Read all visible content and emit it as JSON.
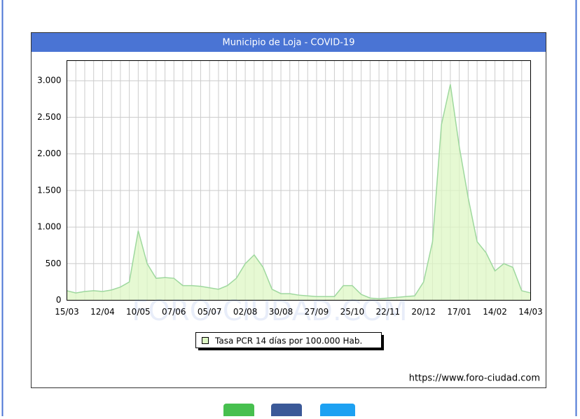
{
  "chart_data": {
    "type": "area",
    "title": "Municipio de Loja - COVID-19",
    "categories": [
      "15/03",
      null,
      null,
      null,
      "12/04",
      null,
      null,
      null,
      "10/05",
      null,
      null,
      null,
      "07/06",
      null,
      null,
      null,
      "05/07",
      null,
      null,
      null,
      "02/08",
      null,
      null,
      null,
      "30/08",
      null,
      null,
      null,
      "27/09",
      null,
      null,
      null,
      "25/10",
      null,
      null,
      null,
      "22/11",
      null,
      null,
      null,
      "20/12",
      null,
      null,
      null,
      "17/01",
      null,
      null,
      null,
      "14/02",
      null,
      null,
      null,
      "14/03"
    ],
    "series": [
      {
        "name": "Tasa PCR 14 días por 100.000 Hab.",
        "color": "#9ed89e",
        "values": [
          130,
          100,
          120,
          130,
          120,
          140,
          180,
          250,
          950,
          500,
          300,
          310,
          300,
          200,
          200,
          190,
          170,
          150,
          200,
          300,
          500,
          620,
          450,
          150,
          90,
          90,
          70,
          60,
          50,
          50,
          50,
          200,
          200,
          80,
          30,
          20,
          30,
          40,
          50,
          60,
          250,
          800,
          2400,
          2950,
          2100,
          1400,
          800,
          650,
          400,
          500,
          450,
          130,
          100
        ]
      }
    ],
    "ylim": [
      0,
      3275
    ],
    "yticks": [
      0,
      500,
      {
        "value": 1000,
        "label": "1.000"
      },
      {
        "value": 1500,
        "label": "1.500"
      },
      {
        "value": 2000,
        "label": "2.000"
      },
      {
        "value": 2500,
        "label": "2.500"
      },
      {
        "value": 3000,
        "label": "3.000"
      }
    ],
    "grid": true,
    "watermark": "FORO-CIUDAD.COM",
    "source": "https://www.foro-ciudad.com"
  }
}
